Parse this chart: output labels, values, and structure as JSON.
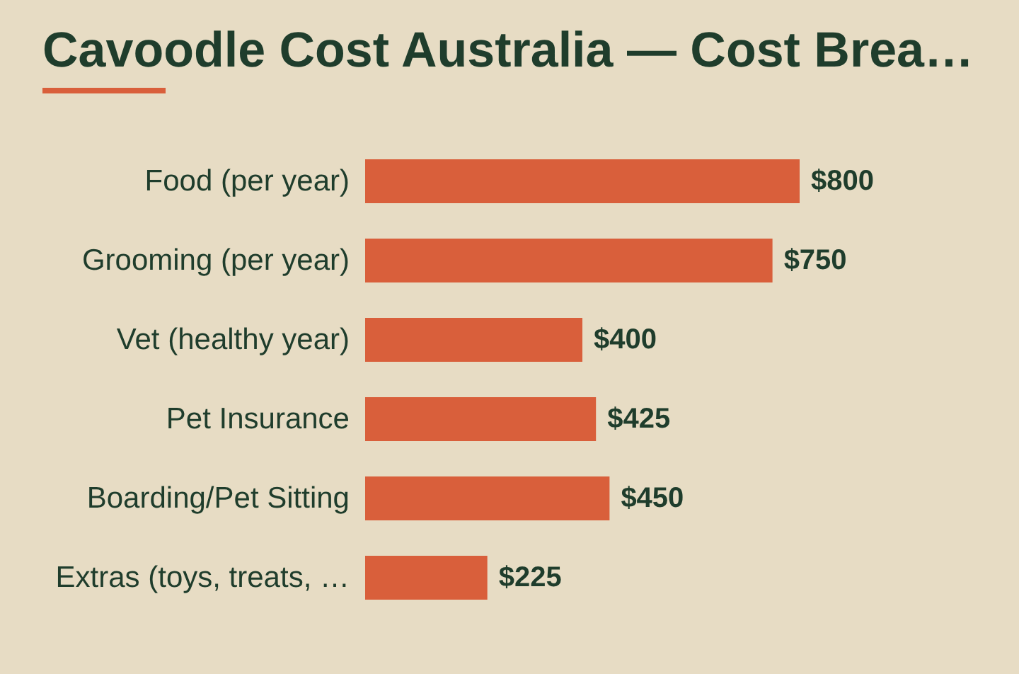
{
  "chart_data": {
    "type": "bar",
    "orientation": "horizontal",
    "title": "Cavoodle Cost Australia — Cost Brea…",
    "categories": [
      "Food (per year)",
      "Grooming (per year)",
      "Vet (healthy year)",
      "Pet Insurance",
      "Boarding/Pet Sitting",
      "Extras (toys, treats, …"
    ],
    "values": [
      800,
      750,
      400,
      425,
      450,
      225
    ],
    "value_labels": [
      "$800",
      "$750",
      "$400",
      "$425",
      "$450",
      "$225"
    ],
    "color": "#d95f3b"
  }
}
